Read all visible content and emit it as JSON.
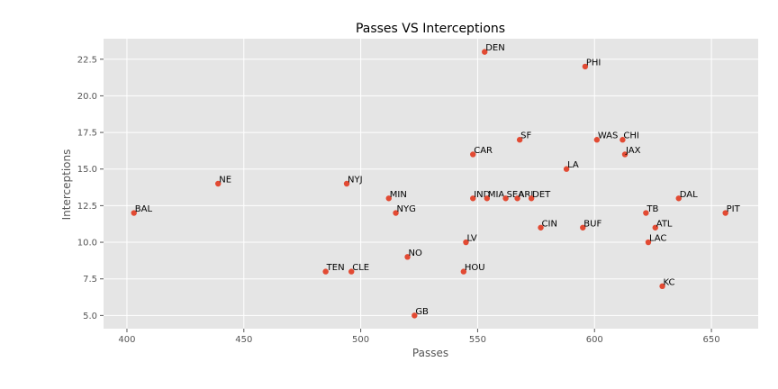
{
  "chart_data": {
    "type": "scatter",
    "title": "Passes VS Interceptions",
    "xlabel": "Passes",
    "ylabel": "Interceptions",
    "xlim": [
      390,
      670
    ],
    "ylim": [
      4.1,
      23.9
    ],
    "xticks": [
      400,
      450,
      500,
      550,
      600,
      650
    ],
    "yticks": [
      5.0,
      7.5,
      10.0,
      12.5,
      15.0,
      17.5,
      20.0,
      22.5
    ],
    "grid": true,
    "colors": {
      "point": "#E24A33",
      "background": "#E5E5E5",
      "grid": "#FFFFFF"
    },
    "points": [
      {
        "label": "DEN",
        "x": 553,
        "y": 23
      },
      {
        "label": "PHI",
        "x": 596,
        "y": 22
      },
      {
        "label": "SF",
        "x": 568,
        "y": 17
      },
      {
        "label": "WAS",
        "x": 601,
        "y": 17
      },
      {
        "label": "CHI",
        "x": 612,
        "y": 17
      },
      {
        "label": "CAR",
        "x": 548,
        "y": 16
      },
      {
        "label": "JAX",
        "x": 613,
        "y": 16
      },
      {
        "label": "LA",
        "x": 588,
        "y": 15
      },
      {
        "label": "NE",
        "x": 439,
        "y": 14
      },
      {
        "label": "NYJ",
        "x": 494,
        "y": 14
      },
      {
        "label": "MIN",
        "x": 512,
        "y": 13
      },
      {
        "label": "IND",
        "x": 548,
        "y": 13
      },
      {
        "label": "MIA",
        "x": 554,
        "y": 13
      },
      {
        "label": "SEA",
        "x": 562,
        "y": 13
      },
      {
        "label": "ARI",
        "x": 567,
        "y": 13
      },
      {
        "label": "DET",
        "x": 573,
        "y": 13
      },
      {
        "label": "DAL",
        "x": 636,
        "y": 13
      },
      {
        "label": "BAL",
        "x": 403,
        "y": 12
      },
      {
        "label": "NYG",
        "x": 515,
        "y": 12
      },
      {
        "label": "TB",
        "x": 622,
        "y": 12
      },
      {
        "label": "PIT",
        "x": 656,
        "y": 12
      },
      {
        "label": "CIN",
        "x": 577,
        "y": 11
      },
      {
        "label": "BUF",
        "x": 595,
        "y": 11
      },
      {
        "label": "ATL",
        "x": 626,
        "y": 11
      },
      {
        "label": "LV",
        "x": 545,
        "y": 10
      },
      {
        "label": "LAC",
        "x": 623,
        "y": 10
      },
      {
        "label": "NO",
        "x": 520,
        "y": 9
      },
      {
        "label": "TEN",
        "x": 485,
        "y": 8
      },
      {
        "label": "CLE",
        "x": 496,
        "y": 8
      },
      {
        "label": "HOU",
        "x": 544,
        "y": 8
      },
      {
        "label": "KC",
        "x": 629,
        "y": 7
      },
      {
        "label": "GB",
        "x": 523,
        "y": 5
      }
    ]
  }
}
